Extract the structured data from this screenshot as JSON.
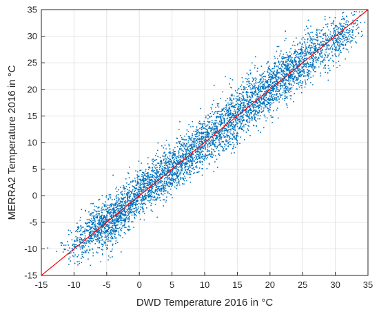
{
  "chart_data": {
    "type": "scatter",
    "title": "",
    "xlabel": "DWD Temperature 2016 in °C",
    "ylabel": "MERRA2 Temperature 2016 in °C",
    "xlim": [
      -15,
      35
    ],
    "ylim": [
      -15,
      35
    ],
    "xticks": [
      -15,
      -10,
      -5,
      0,
      5,
      10,
      15,
      20,
      25,
      30,
      35
    ],
    "yticks": [
      -15,
      -10,
      -5,
      0,
      5,
      10,
      15,
      20,
      25,
      30,
      35
    ],
    "grid": true,
    "series": [
      {
        "kind": "points",
        "color": "#0072BD",
        "points": [
          [
            -9.5,
            -7.9
          ],
          [
            -9.0,
            -7.4
          ],
          [
            -8.8,
            -8.2
          ],
          [
            -8.3,
            -6.6
          ],
          [
            -8.0,
            -5.8
          ],
          [
            -7.6,
            -7.2
          ],
          [
            -7.3,
            -6.1
          ],
          [
            -7.0,
            -5.0
          ],
          [
            -6.8,
            -4.6
          ],
          [
            -6.5,
            -6.3
          ],
          [
            -6.3,
            -7.5
          ],
          [
            -6.0,
            -3.9
          ],
          [
            -5.8,
            -5.5
          ],
          [
            -5.6,
            -10.2
          ],
          [
            -5.4,
            -8.7
          ],
          [
            -5.2,
            -4.3
          ],
          [
            -5.0,
            -6.8
          ],
          [
            -4.8,
            -3.1
          ],
          [
            -4.6,
            -5.9
          ],
          [
            -4.4,
            -2.6
          ],
          [
            -4.2,
            -8.1
          ],
          [
            -4.0,
            -3.8
          ],
          [
            -3.8,
            -5.2
          ],
          [
            -3.5,
            -2.2
          ],
          [
            -3.3,
            -4.9
          ],
          [
            -3.0,
            -1.5
          ],
          [
            -2.8,
            -3.4
          ],
          [
            -2.5,
            -0.8
          ],
          [
            -2.3,
            -2.7
          ],
          [
            -2.0,
            -4.1
          ],
          [
            -1.8,
            0.2
          ],
          [
            -1.5,
            -1.9
          ],
          [
            -1.3,
            -3.2
          ],
          [
            -1.0,
            1.1
          ],
          [
            -0.8,
            -0.9
          ],
          [
            -0.5,
            -2.4
          ],
          [
            -0.3,
            2.3
          ],
          [
            0.0,
            0.4
          ],
          [
            0.2,
            -1.6
          ],
          [
            0.5,
            3.1
          ],
          [
            0.7,
            1.5
          ],
          [
            1.0,
            -0.6
          ],
          [
            1.2,
            4.2
          ],
          [
            1.5,
            2.0
          ],
          [
            1.8,
            0.3
          ],
          [
            2.0,
            3.6
          ],
          [
            2.3,
            5.4
          ],
          [
            2.5,
            1.2
          ],
          [
            2.8,
            3.0
          ],
          [
            3.0,
            6.1
          ],
          [
            3.3,
            2.4
          ],
          [
            3.5,
            4.5
          ],
          [
            3.8,
            0.9
          ],
          [
            4.0,
            5.8
          ],
          [
            4.3,
            3.3
          ],
          [
            4.5,
            7.0
          ],
          [
            4.8,
            4.1
          ],
          [
            5.0,
            2.2
          ],
          [
            5.3,
            6.4
          ],
          [
            5.5,
            8.3
          ],
          [
            5.8,
            4.9
          ],
          [
            6.0,
            3.1
          ],
          [
            6.3,
            7.5
          ],
          [
            6.5,
            5.6
          ],
          [
            6.8,
            9.2
          ],
          [
            7.0,
            6.8
          ],
          [
            7.3,
            4.4
          ],
          [
            7.5,
            8.6
          ],
          [
            7.8,
            10.5
          ],
          [
            8.0,
            7.2
          ],
          [
            8.3,
            5.3
          ],
          [
            8.5,
            9.7
          ],
          [
            8.8,
            11.8
          ],
          [
            9.0,
            8.4
          ],
          [
            9.3,
            6.5
          ],
          [
            9.5,
            10.9
          ],
          [
            9.8,
            12.7
          ],
          [
            10.0,
            9.3
          ],
          [
            10.3,
            7.6
          ],
          [
            10.5,
            11.6
          ],
          [
            10.8,
            13.9
          ],
          [
            11.0,
            10.4
          ],
          [
            11.3,
            8.7
          ],
          [
            11.5,
            12.5
          ],
          [
            11.8,
            14.8
          ],
          [
            12.0,
            11.2
          ],
          [
            12.3,
            9.6
          ],
          [
            12.5,
            13.7
          ],
          [
            12.8,
            16.1
          ],
          [
            13.0,
            12.3
          ],
          [
            13.3,
            10.5
          ],
          [
            13.5,
            14.6
          ],
          [
            13.8,
            17.2
          ],
          [
            14.0,
            13.1
          ],
          [
            14.3,
            11.4
          ],
          [
            14.5,
            15.8
          ],
          [
            14.8,
            18.3
          ],
          [
            15.0,
            14.2
          ],
          [
            15.3,
            12.6
          ],
          [
            15.5,
            16.9
          ],
          [
            15.8,
            19.5
          ],
          [
            16.0,
            15.3
          ],
          [
            16.3,
            13.4
          ],
          [
            16.5,
            17.8
          ],
          [
            16.8,
            20.6
          ],
          [
            17.0,
            16.4
          ],
          [
            17.3,
            14.5
          ],
          [
            17.5,
            19.1
          ],
          [
            17.8,
            21.7
          ],
          [
            18.0,
            17.5
          ],
          [
            18.3,
            15.6
          ],
          [
            18.5,
            20.2
          ],
          [
            18.8,
            22.8
          ],
          [
            19.0,
            18.3
          ],
          [
            19.3,
            16.7
          ],
          [
            19.5,
            21.3
          ],
          [
            19.8,
            23.9
          ],
          [
            20.0,
            19.4
          ],
          [
            20.3,
            17.4
          ],
          [
            20.5,
            22.2
          ],
          [
            20.8,
            24.8
          ],
          [
            21.0,
            20.5
          ],
          [
            21.3,
            18.6
          ],
          [
            21.5,
            23.1
          ],
          [
            21.8,
            25.3
          ],
          [
            22.0,
            21.4
          ],
          [
            22.3,
            19.5
          ],
          [
            22.5,
            24.0
          ],
          [
            22.8,
            26.1
          ],
          [
            23.0,
            22.6
          ],
          [
            23.3,
            20.8
          ],
          [
            23.5,
            25.0
          ],
          [
            23.8,
            26.9
          ],
          [
            24.0,
            23.4
          ],
          [
            24.3,
            21.9
          ],
          [
            24.5,
            25.8
          ],
          [
            24.8,
            27.5
          ],
          [
            25.0,
            24.1
          ],
          [
            25.5,
            26.4
          ],
          [
            25.8,
            22.8
          ],
          [
            26.0,
            28.2
          ],
          [
            26.5,
            25.0
          ],
          [
            27.0,
            27.3
          ],
          [
            27.3,
            29.1
          ],
          [
            27.8,
            26.2
          ],
          [
            28.2,
            28.5
          ],
          [
            28.5,
            24.0
          ],
          [
            28.8,
            29.5
          ],
          [
            29.2,
            27.6
          ],
          [
            29.6,
            30.0
          ],
          [
            30.0,
            28.8
          ],
          [
            30.4,
            27.3
          ],
          [
            30.8,
            29.6
          ],
          [
            31.2,
            28.4
          ],
          [
            31.6,
            29.8
          ],
          [
            32.0,
            29.0
          ]
        ]
      },
      {
        "kind": "line",
        "color": "#FF0000",
        "points": [
          [
            -15,
            -15
          ],
          [
            35,
            35
          ]
        ]
      }
    ]
  }
}
